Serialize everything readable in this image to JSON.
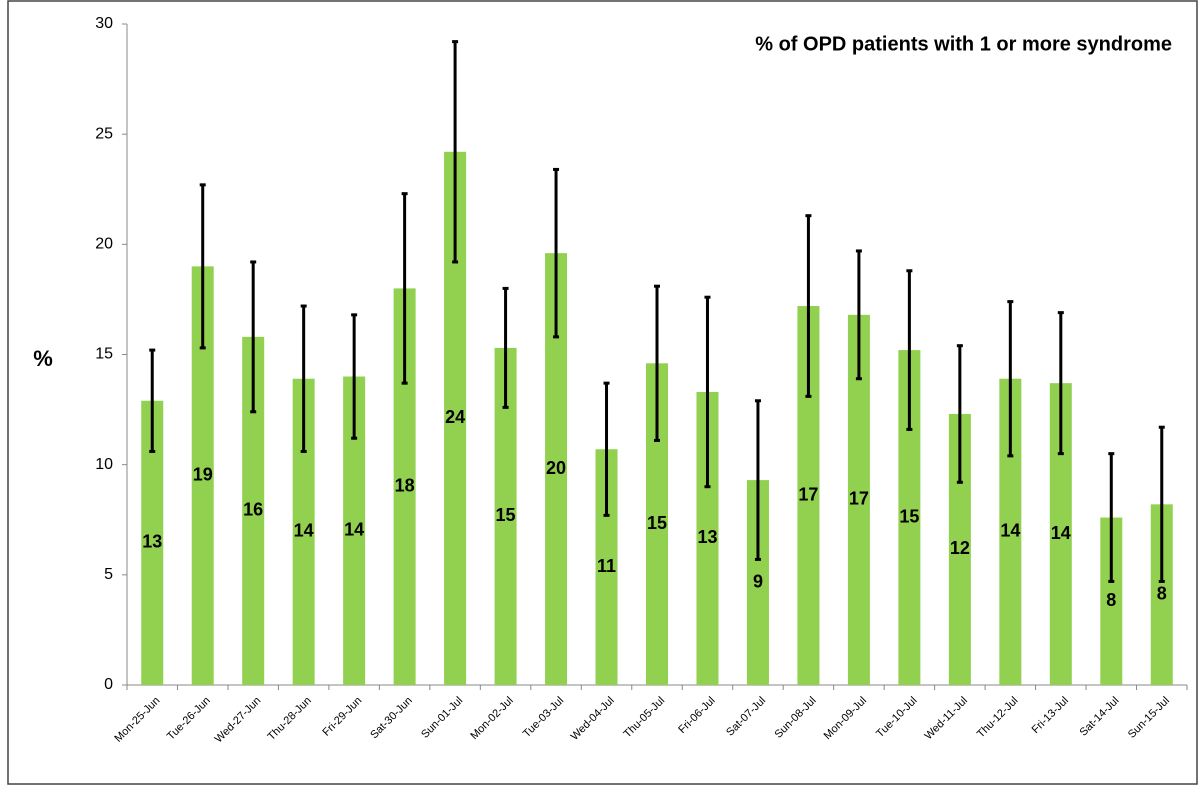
{
  "chart_data": {
    "type": "bar",
    "title": "% of OPD patients with 1 or more syndrome",
    "y_label": "%",
    "categories": [
      "Mon-25-Jun",
      "Tue-26-Jun",
      "Wed-27-Jun",
      "Thu-28-Jun",
      "Fri-29-Jun",
      "Sat-30-Jun",
      "Sun-01-Jul",
      "Mon-02-Jul",
      "Tue-03-Jul",
      "Wed-04-Jul",
      "Thu-05-Jul",
      "Fri-06-Jul",
      "Sat-07-Jul",
      "Sun-08-Jul",
      "Mon-09-Jul",
      "Tue-10-Jul",
      "Wed-11-Jul",
      "Thu-12-Jul",
      "Fri-13-Jul",
      "Sat-14-Jul",
      "Sun-15-Jul"
    ],
    "values": [
      12.9,
      19.0,
      15.8,
      13.9,
      14.0,
      18.0,
      24.2,
      15.3,
      19.6,
      10.7,
      14.6,
      13.3,
      9.3,
      17.2,
      16.8,
      15.2,
      12.3,
      13.9,
      13.7,
      7.6,
      8.2
    ],
    "value_labels": [
      "13",
      "19",
      "16",
      "14",
      "14",
      "18",
      "24",
      "15",
      "20",
      "11",
      "15",
      "13",
      "9",
      "17",
      "17",
      "15",
      "12",
      "14",
      "14",
      "8",
      "8"
    ],
    "errors": [
      2.3,
      3.7,
      3.4,
      3.3,
      2.8,
      4.3,
      5.0,
      2.7,
      3.8,
      3.0,
      3.5,
      4.3,
      3.6,
      4.1,
      2.9,
      3.6,
      3.1,
      3.5,
      3.2,
      2.9,
      3.5
    ],
    "color": "#92d050",
    "ylim": [
      0,
      30
    ],
    "yticks": [
      0,
      5,
      10,
      15,
      20,
      25,
      30
    ],
    "grid": false
  }
}
